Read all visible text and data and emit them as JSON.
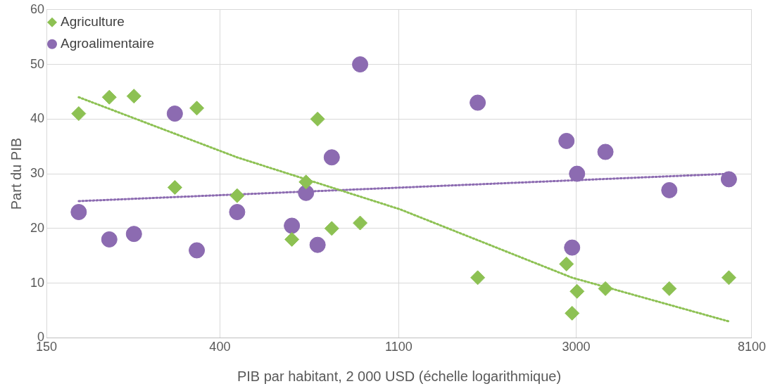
{
  "chart_data": {
    "type": "scatter",
    "xlabel": "PIB par habitant, 2 000 USD (échelle logarithmique)",
    "ylabel": "Part du PIB",
    "log": "x",
    "grid": true,
    "legend": "top left",
    "xlim": [
      150,
      8100
    ],
    "xticks": [
      150,
      400,
      1100,
      3000,
      8100
    ],
    "ylim": [
      0,
      60
    ],
    "yticks": [
      0,
      10,
      20,
      30,
      40,
      50,
      60
    ],
    "series": [
      {
        "name": "Agriculture",
        "marker": "diamond",
        "color": "#8dc153",
        "x": [
          180,
          214,
          246,
          310,
          351,
          441,
          601,
          651,
          695,
          753,
          884,
          1719,
          2840,
          3015,
          2932,
          3540,
          5080,
          7115
        ],
        "values": [
          41,
          44,
          44.2,
          27.5,
          42,
          26,
          18,
          28.5,
          40,
          20,
          21,
          11,
          13.5,
          8.5,
          4.5,
          9,
          9,
          11
        ]
      },
      {
        "name": "Agroalimentaire",
        "marker": "circle",
        "color": "#8c6bb1",
        "x": [
          180,
          214,
          246,
          310,
          351,
          441,
          601,
          651,
          695,
          753,
          884,
          1719,
          2840,
          3015,
          2932,
          3540,
          5080,
          7115
        ],
        "values": [
          23,
          18,
          19,
          41,
          16,
          23,
          20.5,
          26.5,
          17,
          33,
          50,
          43,
          36,
          30,
          16.5,
          34,
          27,
          29
        ]
      },
      {
        "type": "line",
        "line_style": "dotted",
        "marker": "none",
        "color": "#8dc153",
        "x": [
          180,
          441,
          1108,
          2932,
          7115
        ],
        "values": [
          44,
          33,
          23.5,
          11,
          3
        ]
      },
      {
        "type": "line",
        "line_style": "dotted",
        "marker": "none",
        "color": "#8c6bb1",
        "x": [
          180,
          7115
        ],
        "values": [
          25,
          30
        ]
      }
    ]
  }
}
